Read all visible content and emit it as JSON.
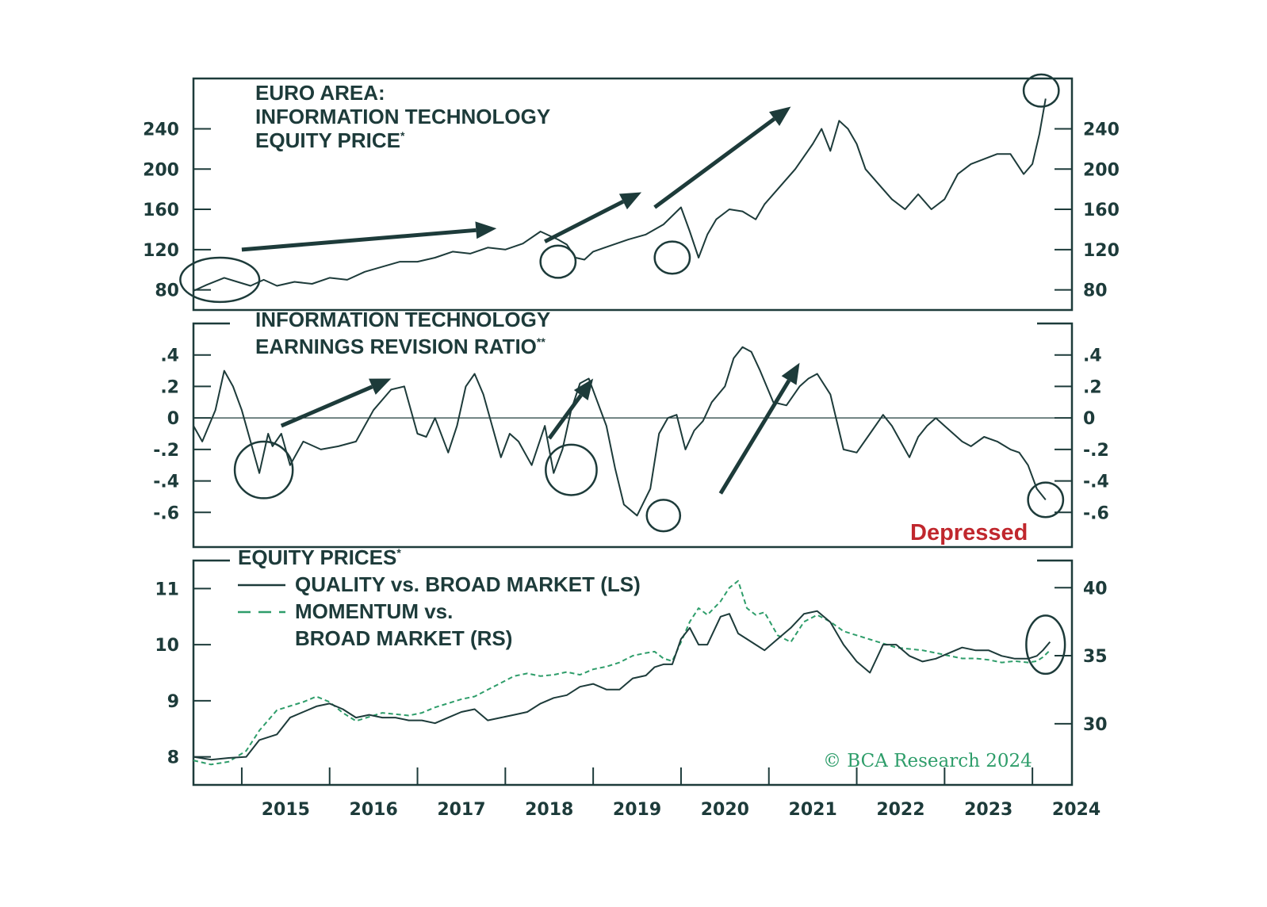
{
  "colors": {
    "ink": "#1d3b3a",
    "series_dark": "#1d3b3a",
    "series_green": "#2e9d6a",
    "annotation_red": "#c0272d",
    "background": "#ffffff"
  },
  "x_axis": {
    "labels": [
      "2015",
      "2016",
      "2017",
      "2018",
      "2019",
      "2020",
      "2021",
      "2022",
      "2023",
      "2024"
    ],
    "range": [
      2014.45,
      2024.45
    ]
  },
  "credit": "© BCA Research 2024",
  "chart_data": [
    {
      "type": "line",
      "panel": "top",
      "title_lines": [
        "EURO AREA:",
        "INFORMATION TECHNOLOGY",
        "EQUITY PRICE"
      ],
      "title_mark": "*",
      "ylim": [
        60,
        290
      ],
      "yticks": [
        80,
        120,
        160,
        200,
        240
      ],
      "ytick_labels": [
        "80",
        "120",
        "160",
        "200",
        "240"
      ],
      "series": [
        {
          "name": "IT equity price",
          "x": [
            2014.45,
            2014.6,
            2014.8,
            2014.95,
            2015.1,
            2015.25,
            2015.4,
            2015.6,
            2015.8,
            2016.0,
            2016.2,
            2016.4,
            2016.6,
            2016.8,
            2017.0,
            2017.2,
            2017.4,
            2017.6,
            2017.8,
            2018.0,
            2018.2,
            2018.4,
            2018.5,
            2018.6,
            2018.7,
            2018.8,
            2018.9,
            2019.0,
            2019.2,
            2019.4,
            2019.6,
            2019.8,
            2020.0,
            2020.1,
            2020.2,
            2020.3,
            2020.4,
            2020.55,
            2020.7,
            2020.85,
            2020.95,
            2021.1,
            2021.3,
            2021.5,
            2021.6,
            2021.7,
            2021.8,
            2021.9,
            2022.0,
            2022.1,
            2022.25,
            2022.4,
            2022.55,
            2022.7,
            2022.85,
            2023.0,
            2023.15,
            2023.3,
            2023.45,
            2023.6,
            2023.75,
            2023.9,
            2024.0,
            2024.08,
            2024.15
          ],
          "values": [
            79,
            85,
            92,
            88,
            84,
            90,
            84,
            88,
            86,
            92,
            90,
            98,
            103,
            108,
            108,
            112,
            118,
            116,
            122,
            120,
            126,
            138,
            134,
            130,
            125,
            112,
            110,
            118,
            124,
            130,
            135,
            145,
            162,
            138,
            112,
            135,
            150,
            160,
            158,
            150,
            165,
            180,
            200,
            225,
            240,
            218,
            248,
            240,
            225,
            200,
            185,
            170,
            160,
            175,
            160,
            170,
            195,
            205,
            210,
            215,
            215,
            195,
            205,
            235,
            270
          ]
        }
      ],
      "annotations": {
        "arrows": [
          {
            "from": [
              2015.0,
              120
            ],
            "to": [
              2017.9,
              141
            ]
          },
          {
            "from": [
              2018.45,
              128
            ],
            "to": [
              2019.55,
              177
            ]
          },
          {
            "from": [
              2019.7,
              162
            ],
            "to": [
              2021.25,
              262
            ]
          }
        ],
        "circles": [
          {
            "center": [
              2014.75,
              90
            ],
            "rx": 0.45,
            "ry": 22
          },
          {
            "center": [
              2018.6,
              108
            ],
            "rx": 0.2,
            "ry": 16
          },
          {
            "center": [
              2019.9,
              112
            ],
            "rx": 0.2,
            "ry": 16
          },
          {
            "center": [
              2024.1,
              278
            ],
            "rx": 0.2,
            "ry": 16
          }
        ]
      }
    },
    {
      "type": "line",
      "panel": "middle",
      "title_lines": [
        "INFORMATION TECHNOLOGY",
        "EARNINGS REVISION RATIO"
      ],
      "title_mark": "**",
      "ylim": [
        -0.82,
        0.6
      ],
      "yticks": [
        0.4,
        0.2,
        0,
        -0.2,
        -0.4,
        -0.6
      ],
      "ytick_labels": [
        ".4",
        ".2",
        "0",
        "-.2",
        "-.4",
        "-.6"
      ],
      "zero_line": true,
      "annotation_text": "Depressed",
      "series": [
        {
          "name": "Earnings revision ratio",
          "x": [
            2014.45,
            2014.55,
            2014.7,
            2014.8,
            2014.9,
            2015.0,
            2015.1,
            2015.2,
            2015.3,
            2015.35,
            2015.45,
            2015.55,
            2015.7,
            2015.9,
            2016.1,
            2016.3,
            2016.5,
            2016.7,
            2016.85,
            2017.0,
            2017.1,
            2017.2,
            2017.35,
            2017.45,
            2017.55,
            2017.65,
            2017.75,
            2017.85,
            2017.95,
            2018.05,
            2018.15,
            2018.3,
            2018.45,
            2018.55,
            2018.65,
            2018.75,
            2018.85,
            2018.95,
            2019.05,
            2019.15,
            2019.25,
            2019.35,
            2019.5,
            2019.65,
            2019.75,
            2019.85,
            2019.95,
            2020.05,
            2020.15,
            2020.25,
            2020.35,
            2020.5,
            2020.6,
            2020.7,
            2020.8,
            2020.9,
            2021.05,
            2021.2,
            2021.35,
            2021.45,
            2021.55,
            2021.7,
            2021.85,
            2022.0,
            2022.15,
            2022.3,
            2022.4,
            2022.5,
            2022.6,
            2022.7,
            2022.8,
            2022.9,
            2023.0,
            2023.1,
            2023.2,
            2023.3,
            2023.45,
            2023.6,
            2023.75,
            2023.85,
            2023.95,
            2024.05,
            2024.15
          ],
          "values": [
            -0.05,
            -0.15,
            0.05,
            0.3,
            0.2,
            0.05,
            -0.15,
            -0.35,
            -0.1,
            -0.18,
            -0.1,
            -0.3,
            -0.15,
            -0.2,
            -0.18,
            -0.15,
            0.05,
            0.18,
            0.2,
            -0.1,
            -0.12,
            0.0,
            -0.22,
            -0.05,
            0.2,
            0.28,
            0.15,
            -0.05,
            -0.25,
            -0.1,
            -0.15,
            -0.3,
            -0.05,
            -0.35,
            -0.2,
            0.05,
            0.22,
            0.25,
            0.1,
            -0.05,
            -0.32,
            -0.55,
            -0.62,
            -0.45,
            -0.1,
            0.0,
            0.02,
            -0.2,
            -0.08,
            -0.02,
            0.1,
            0.2,
            0.38,
            0.45,
            0.42,
            0.3,
            0.1,
            0.08,
            0.2,
            0.25,
            0.28,
            0.15,
            -0.2,
            -0.22,
            -0.1,
            0.02,
            -0.05,
            -0.15,
            -0.25,
            -0.12,
            -0.05,
            0.0,
            -0.05,
            -0.1,
            -0.15,
            -0.18,
            -0.12,
            -0.15,
            -0.2,
            -0.22,
            -0.3,
            -0.45,
            -0.52
          ]
        }
      ],
      "annotations": {
        "arrows": [
          {
            "from": [
              2015.45,
              -0.05
            ],
            "to": [
              2016.7,
              0.25
            ]
          },
          {
            "from": [
              2018.5,
              -0.13
            ],
            "to": [
              2019.0,
              0.25
            ]
          },
          {
            "from": [
              2020.45,
              -0.48
            ],
            "to": [
              2021.35,
              0.35
            ]
          }
        ],
        "circles": [
          {
            "center": [
              2015.25,
              -0.33
            ],
            "rx": 0.33,
            "ry": 0.18
          },
          {
            "center": [
              2018.75,
              -0.33
            ],
            "rx": 0.29,
            "ry": 0.16
          },
          {
            "center": [
              2019.8,
              -0.62
            ],
            "rx": 0.19,
            "ry": 0.1
          },
          {
            "center": [
              2024.15,
              -0.52
            ],
            "rx": 0.2,
            "ry": 0.11
          }
        ]
      }
    },
    {
      "type": "line",
      "panel": "bottom",
      "title_lines": [
        "EQUITY PRICES"
      ],
      "title_mark": "*",
      "legend": [
        {
          "label": "QUALITY vs. BROAD MARKET (LS)",
          "style": "solid"
        },
        {
          "label_lines": [
            "MOMENTUM vs.",
            "BROAD MARKET (RS)"
          ],
          "style": "dashed"
        }
      ],
      "ylim_left": [
        7.5,
        11.5
      ],
      "yticks_left": [
        8,
        9,
        10,
        11
      ],
      "ytick_labels_left": [
        "8",
        "9",
        "10",
        "11"
      ],
      "ylim_right": [
        25.5,
        42.0
      ],
      "yticks_right": [
        30,
        35,
        40
      ],
      "ytick_labels_right": [
        "30",
        "35",
        "40"
      ],
      "series": [
        {
          "name": "QUALITY vs. BROAD MARKET (LS)",
          "axis": "left",
          "x": [
            2014.45,
            2014.65,
            2014.85,
            2015.05,
            2015.2,
            2015.4,
            2015.55,
            2015.7,
            2015.85,
            2016.0,
            2016.15,
            2016.3,
            2016.45,
            2016.6,
            2016.75,
            2016.9,
            2017.05,
            2017.2,
            2017.35,
            2017.5,
            2017.65,
            2017.8,
            2017.95,
            2018.1,
            2018.25,
            2018.4,
            2018.55,
            2018.7,
            2018.85,
            2019.0,
            2019.15,
            2019.3,
            2019.45,
            2019.6,
            2019.7,
            2019.8,
            2019.9,
            2020.0,
            2020.1,
            2020.2,
            2020.3,
            2020.45,
            2020.55,
            2020.65,
            2020.75,
            2020.85,
            2020.95,
            2021.1,
            2021.25,
            2021.4,
            2021.55,
            2021.7,
            2021.85,
            2022.0,
            2022.15,
            2022.3,
            2022.45,
            2022.6,
            2022.75,
            2022.9,
            2023.05,
            2023.2,
            2023.35,
            2023.5,
            2023.65,
            2023.8,
            2023.95,
            2024.05,
            2024.12,
            2024.2
          ],
          "values": [
            8.0,
            7.95,
            7.98,
            8.0,
            8.3,
            8.4,
            8.7,
            8.8,
            8.9,
            8.95,
            8.85,
            8.7,
            8.75,
            8.7,
            8.7,
            8.65,
            8.65,
            8.6,
            8.7,
            8.8,
            8.85,
            8.65,
            8.7,
            8.75,
            8.8,
            8.95,
            9.05,
            9.1,
            9.25,
            9.3,
            9.2,
            9.2,
            9.4,
            9.45,
            9.6,
            9.65,
            9.65,
            10.1,
            10.3,
            10.0,
            10.0,
            10.5,
            10.55,
            10.2,
            10.1,
            10.0,
            9.9,
            10.1,
            10.3,
            10.55,
            10.6,
            10.4,
            10.0,
            9.7,
            9.5,
            10.0,
            10.0,
            9.8,
            9.7,
            9.75,
            9.85,
            9.95,
            9.9,
            9.9,
            9.8,
            9.75,
            9.75,
            9.8,
            9.9,
            10.05
          ]
        },
        {
          "name": "MOMENTUM vs. BROAD MARKET (RS)",
          "axis": "right",
          "x": [
            2014.45,
            2014.65,
            2014.85,
            2015.05,
            2015.2,
            2015.4,
            2015.55,
            2015.7,
            2015.85,
            2016.0,
            2016.15,
            2016.3,
            2016.45,
            2016.6,
            2016.75,
            2016.9,
            2017.05,
            2017.2,
            2017.35,
            2017.5,
            2017.65,
            2017.8,
            2017.95,
            2018.1,
            2018.25,
            2018.4,
            2018.55,
            2018.7,
            2018.85,
            2019.0,
            2019.15,
            2019.3,
            2019.45,
            2019.6,
            2019.7,
            2019.8,
            2019.9,
            2020.0,
            2020.1,
            2020.2,
            2020.3,
            2020.45,
            2020.55,
            2020.65,
            2020.75,
            2020.85,
            2020.95,
            2021.1,
            2021.25,
            2021.4,
            2021.55,
            2021.7,
            2021.85,
            2022.0,
            2022.15,
            2022.3,
            2022.45,
            2022.6,
            2022.75,
            2022.9,
            2023.05,
            2023.2,
            2023.35,
            2023.5,
            2023.65,
            2023.8,
            2023.95,
            2024.05,
            2024.12,
            2024.2
          ],
          "values": [
            27.3,
            27.0,
            27.2,
            28.0,
            29.5,
            31.0,
            31.3,
            31.6,
            32.0,
            31.6,
            30.8,
            30.2,
            30.5,
            30.8,
            30.7,
            30.6,
            30.8,
            31.2,
            31.5,
            31.8,
            32.0,
            32.5,
            33.0,
            33.5,
            33.7,
            33.5,
            33.6,
            33.8,
            33.6,
            34.0,
            34.2,
            34.5,
            35.0,
            35.2,
            35.3,
            34.8,
            34.6,
            36.0,
            37.5,
            38.5,
            38.0,
            39.0,
            40.0,
            40.5,
            38.5,
            38.0,
            38.2,
            36.5,
            36.0,
            37.5,
            38.0,
            37.5,
            36.8,
            36.5,
            36.2,
            35.9,
            35.6,
            35.5,
            35.4,
            35.2,
            35.0,
            34.8,
            34.8,
            34.7,
            34.5,
            34.6,
            34.5,
            34.6,
            34.9,
            35.4
          ]
        }
      ],
      "annotations": {
        "circles": [
          {
            "center": [
              2024.15,
              10.0
            ],
            "rx": 0.22,
            "ry": 0.52
          }
        ]
      }
    }
  ]
}
